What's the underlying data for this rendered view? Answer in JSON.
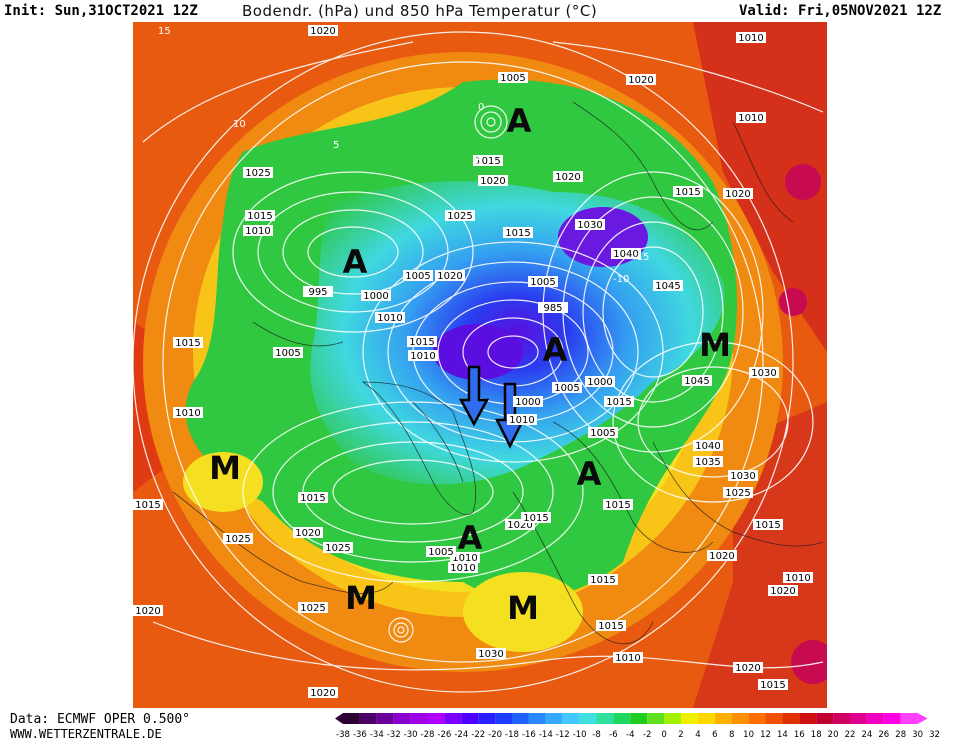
{
  "header": {
    "init": "Init: Sun,31OCT2021 12Z",
    "title": "Bodendr. (hPa) und 850 hPa Temperatur (°C)",
    "valid": "Valid: Fri,05NOV2021 12Z"
  },
  "footer": {
    "data_source": "Data: ECMWF OPER 0.500°",
    "website": "WWW.WETTERZENTRALE.DE"
  },
  "legend": {
    "ticks": [
      "-38",
      "-36",
      "-34",
      "-32",
      "-30",
      "-28",
      "-26",
      "-24",
      "-22",
      "-20",
      "-18",
      "-16",
      "-14",
      "-12",
      "-10",
      "-8",
      "-6",
      "-4",
      "-2",
      "0",
      "2",
      "4",
      "6",
      "8",
      "10",
      "12",
      "14",
      "16",
      "18",
      "20",
      "22",
      "24",
      "26",
      "28",
      "30",
      "32"
    ],
    "colors": [
      "#2e0033",
      "#4a0066",
      "#6a0099",
      "#8a00cc",
      "#a000e6",
      "#b000ff",
      "#7a00ff",
      "#5000ff",
      "#2a1fff",
      "#1c3cff",
      "#2062ff",
      "#2a88ff",
      "#36aaff",
      "#40c8ff",
      "#40e0e0",
      "#30e0a0",
      "#20d860",
      "#20cc20",
      "#60e020",
      "#a0f000",
      "#f0f000",
      "#ffd800",
      "#ffb000",
      "#ff9000",
      "#ff7000",
      "#f05000",
      "#e03000",
      "#d01010",
      "#c00030",
      "#d00060",
      "#e00090",
      "#f000c0",
      "#ff00e0",
      "#ff40ff"
    ],
    "label_color": "#6a00cc"
  },
  "map": {
    "high_label": "A",
    "low_label": "M",
    "pressure_labels": [
      "1020",
      "1005",
      "1020",
      "1010",
      "1010",
      "1025",
      "1015",
      "1020",
      "1020",
      "1015",
      "1020",
      "1025",
      "1030",
      "1015",
      "1040",
      "1045",
      "1015",
      "1010",
      "995",
      "1000",
      "1010",
      "1005",
      "1020",
      "1005",
      "985",
      "1015",
      "1010",
      "1015",
      "1010",
      "1005",
      "1030",
      "1045",
      "1015",
      "1000",
      "1005",
      "1000",
      "1005",
      "1010",
      "1040",
      "1035",
      "1030",
      "1025",
      "1015",
      "1010",
      "1015",
      "1015",
      "1015",
      "1020",
      "1025",
      "1020",
      "1010",
      "1015",
      "1005",
      "1010",
      "1020",
      "1025",
      "1015",
      "1030",
      "1020",
      "1015",
      "1025",
      "1010",
      "1020",
      "1015",
      "1015",
      "1020",
      "1010",
      "1020"
    ],
    "temp_labels": [
      "15",
      "10",
      "5",
      "0",
      "-5",
      "-10",
      "-15"
    ],
    "colors": {
      "warm": "#e04a10",
      "orange": "#f08a10",
      "yellow": "#f8e020",
      "green": "#30c840",
      "cyan": "#40c8f0",
      "blue": "#3a6cf0",
      "violet": "#6a1ae0",
      "magenta": "#d01060"
    }
  }
}
